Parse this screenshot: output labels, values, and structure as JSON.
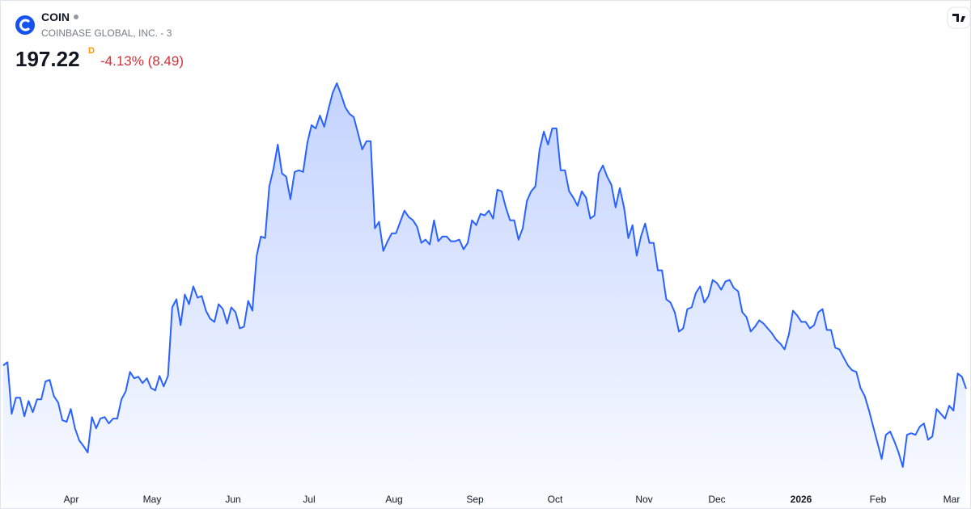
{
  "header": {
    "symbol": "COIN",
    "company": "COINBASE GLOBAL, INC. - 3",
    "price": "197.22",
    "interval": "D",
    "change": "-4.13% (8.49)"
  },
  "chart_data": {
    "type": "line",
    "color": "#2962ff",
    "x_axis_labels": [
      "Apr",
      "May",
      "Jun",
      "Jul",
      "Aug",
      "Sep",
      "Oct",
      "Nov",
      "Dec",
      "2026",
      "Feb",
      "Mar"
    ],
    "values": [
      216.1,
      218.7,
      177.0,
      190.0,
      190.0,
      175.0,
      187.4,
      178.3,
      188.7,
      188.7,
      203.1,
      204.4,
      191.3,
      186.1,
      171.8,
      170.5,
      180.9,
      165.2,
      155.5,
      150.9,
      145.7,
      174.4,
      165.2,
      173.1,
      174.4,
      169.2,
      173.1,
      173.1,
      188.7,
      195.2,
      210.9,
      205.7,
      207.0,
      201.8,
      205.7,
      197.8,
      195.9,
      207.6,
      199.1,
      207.6,
      263.0,
      269.6,
      248.7,
      273.5,
      265.6,
      280.0,
      270.9,
      272.2,
      260.4,
      253.9,
      251.3,
      265.6,
      261.7,
      250.0,
      263.0,
      259.1,
      246.1,
      247.4,
      268.3,
      260.4,
      304.8,
      320.4,
      319.1,
      360.8,
      375.2,
      394.7,
      371.3,
      368.7,
      350.4,
      372.6,
      373.9,
      372.6,
      396.0,
      410.4,
      407.8,
      418.2,
      409.1,
      423.4,
      436.5,
      444.3,
      435.2,
      424.7,
      419.5,
      416.9,
      403.9,
      390.8,
      397.4,
      397.4,
      327.0,
      332.2,
      308.7,
      316.5,
      323.0,
      323.0,
      332.2,
      341.3,
      336.1,
      333.5,
      328.2,
      315.2,
      317.8,
      313.9,
      333.5,
      316.5,
      320.4,
      320.4,
      316.5,
      316.5,
      317.8,
      310.0,
      315.2,
      333.5,
      329.5,
      338.7,
      337.4,
      341.3,
      334.8,
      358.2,
      356.9,
      343.9,
      333.5,
      333.5,
      317.8,
      327.0,
      349.1,
      356.9,
      360.8,
      390.8,
      405.2,
      394.7,
      407.8,
      407.8,
      373.9,
      373.9,
      356.9,
      351.7,
      345.2,
      356.9,
      351.7,
      334.8,
      337.4,
      371.3,
      377.8,
      368.7,
      362.1,
      343.9,
      359.5,
      343.9,
      319.1,
      329.5,
      304.8,
      320.4,
      330.8,
      315.2,
      315.2,
      293.0,
      293.0,
      269.6,
      267.0,
      259.1,
      243.5,
      246.1,
      261.7,
      263.0,
      274.8,
      280.0,
      267.0,
      272.2,
      285.2,
      282.6,
      277.4,
      284.0,
      285.2,
      278.7,
      276.1,
      259.1,
      255.2,
      243.5,
      247.4,
      252.6,
      250.0,
      246.1,
      242.2,
      237.0,
      233.7,
      229.1,
      240.9,
      260.4,
      256.5,
      251.3,
      251.3,
      246.1,
      248.7,
      259.1,
      261.7,
      244.8,
      244.8,
      230.5,
      229.1,
      222.6,
      216.1,
      212.2,
      210.9,
      197.8,
      191.3,
      179.6,
      166.5,
      153.5,
      140.5,
      160.0,
      162.6,
      154.8,
      145.7,
      134.0,
      160.0,
      161.3,
      160.0,
      166.5,
      169.2,
      156.1,
      158.7,
      180.9,
      177.0,
      173.1,
      183.5,
      179.6,
      209.6,
      207.0,
      197.22
    ]
  }
}
